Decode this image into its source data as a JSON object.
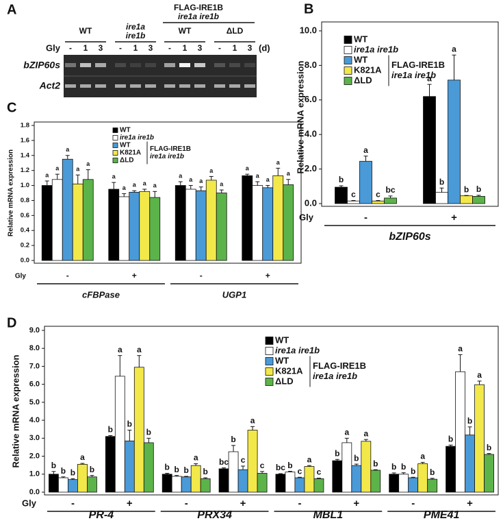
{
  "gel": {
    "panel_label": "A",
    "header_top": "FLAG-IRE1B",
    "header_top_sub": "ire1a ire1b",
    "groups": [
      [
        "WT"
      ],
      [
        "ire1a",
        "ire1b"
      ],
      [
        "WT"
      ],
      [
        "ΔLD"
      ]
    ],
    "row_label": "Gly",
    "lanes": [
      "-",
      "1",
      "3",
      "-",
      "1",
      "3",
      "-",
      "1",
      "3",
      "-",
      "1",
      "3"
    ],
    "unit": "(d)",
    "bands": [
      "bZIP60s",
      "Act2"
    ]
  },
  "chart_data": [
    {
      "type": "bar",
      "panel_label": "B",
      "ylabel": "Relative mRNA expression",
      "x_title": "Gly",
      "categories": [
        "-",
        "+"
      ],
      "genes": [
        "bZIP60s"
      ],
      "ylim": [
        0,
        10
      ],
      "yticks": [
        {
          "value": 0,
          "label": "0.0"
        },
        {
          "value": 2,
          "label": "2.0"
        },
        {
          "value": 4,
          "label": "4.0"
        },
        {
          "value": 6,
          "label": "6.0"
        },
        {
          "value": 8,
          "label": "8.0"
        },
        {
          "value": 10,
          "label": "10.0"
        }
      ],
      "legend_group_label": [
        "FLAG-IRE1B",
        "ire1a ire1b"
      ],
      "series": [
        {
          "name": "WT",
          "color": "#000000",
          "values": [
            0.95,
            6.2
          ],
          "errors": [
            0.08,
            0.7
          ],
          "letters": [
            "b",
            "a"
          ]
        },
        {
          "name": "ire1a ire1b",
          "color": "#ffffff",
          "values": [
            0.15,
            0.65
          ],
          "errors": [
            0.03,
            0.25
          ],
          "letters": [
            "c",
            "b"
          ]
        },
        {
          "name": "WT",
          "color": "#4a9ad8",
          "values": [
            2.45,
            7.15
          ],
          "errors": [
            0.3,
            1.45
          ],
          "letters": [
            "a",
            "a"
          ]
        },
        {
          "name": "K821A",
          "color": "#f2e84a",
          "values": [
            0.15,
            0.45
          ],
          "errors": [
            0.03,
            0.02
          ],
          "letters": [
            "c",
            "b"
          ]
        },
        {
          "name": "ΔLD",
          "color": "#5cb34a",
          "values": [
            0.32,
            0.42
          ],
          "errors": [
            0.12,
            0.06
          ],
          "letters": [
            "bc",
            "b"
          ]
        }
      ]
    },
    {
      "type": "bar",
      "panel_label": "C",
      "ylabel": "Relative mRNA expression",
      "x_title": "Gly",
      "categories": [
        "-",
        "+",
        "-",
        "+"
      ],
      "genes": [
        "cFBPase",
        "UGP1"
      ],
      "ylim": [
        0,
        1.8
      ],
      "yticks": [
        {
          "value": 0,
          "label": "0.0"
        },
        0.2,
        0.4,
        0.6,
        0.8,
        {
          "value": 1,
          "label": "1.0"
        },
        1.2,
        1.4,
        1.6,
        1.8
      ],
      "legend_group_label": [
        "FLAG-IRE1B",
        "ire1a ire1b"
      ],
      "series": [
        {
          "name": "WT",
          "color": "#000000",
          "values": [
            1.0,
            0.95,
            1.0,
            1.13
          ],
          "errors": [
            0.06,
            0.09,
            0.05,
            0.02
          ],
          "letters": [
            "a",
            "a",
            "a",
            "a"
          ]
        },
        {
          "name": "ire1a ire1b",
          "color": "#ffffff",
          "values": [
            1.08,
            0.85,
            0.95,
            1.0
          ],
          "errors": [
            0.07,
            0.04,
            0.05,
            0.05
          ],
          "letters": [
            "a",
            "a",
            "a",
            "a"
          ]
        },
        {
          "name": "WT",
          "color": "#4a9ad8",
          "values": [
            1.35,
            0.91,
            0.93,
            0.97
          ],
          "errors": [
            0.05,
            0.02,
            0.05,
            0.03
          ],
          "letters": [
            "a",
            "a",
            "a",
            "a"
          ]
        },
        {
          "name": "K821A",
          "color": "#f2e84a",
          "values": [
            1.02,
            0.92,
            1.07,
            1.13
          ],
          "errors": [
            0.12,
            0.03,
            0.05,
            0.1
          ],
          "letters": [
            "a",
            "a",
            "a",
            "a"
          ]
        },
        {
          "name": "ΔLD",
          "color": "#5cb34a",
          "values": [
            1.08,
            0.84,
            0.9,
            1.01
          ],
          "errors": [
            0.13,
            0.08,
            0.04,
            0.07
          ],
          "letters": [
            "a",
            "a",
            "a",
            "a"
          ]
        }
      ]
    },
    {
      "type": "bar",
      "panel_label": "D",
      "ylabel": "Relative mRNA expression",
      "x_title": "Gly",
      "categories": [
        "-",
        "+",
        "-",
        "+",
        "-",
        "+",
        "-",
        "+"
      ],
      "genes": [
        "PR-4",
        "PRX34",
        "MBL1",
        "PME41"
      ],
      "ylim": [
        0,
        9
      ],
      "yticks": [
        {
          "value": 0,
          "label": "0.0"
        },
        {
          "value": 1,
          "label": "1.0"
        },
        {
          "value": 2,
          "label": "2.0"
        },
        {
          "value": 3,
          "label": "3.0"
        },
        {
          "value": 4,
          "label": "4.0"
        },
        {
          "value": 5,
          "label": "5.0"
        },
        {
          "value": 6,
          "label": "6.0"
        },
        {
          "value": 7,
          "label": "7.0"
        },
        {
          "value": 8,
          "label": "8.0"
        },
        {
          "value": 9,
          "label": "9.0"
        }
      ],
      "legend_group_label": [
        "FLAG-IRE1B",
        "ire1a ire1b"
      ],
      "series": [
        {
          "name": "WT",
          "color": "#000000",
          "values": [
            1.0,
            3.1,
            1.0,
            1.3,
            1.0,
            1.75,
            1.0,
            2.55
          ],
          "errors": [
            0.15,
            0.05,
            0.05,
            0.05,
            0.03,
            0.07,
            0.07,
            0.07
          ],
          "letters": [
            "b",
            "b",
            "b",
            "bc",
            "bc",
            "b",
            "b",
            "b"
          ]
        },
        {
          "name": "ire1a ire1b",
          "color": "#ffffff",
          "values": [
            0.8,
            6.45,
            0.88,
            2.25,
            1.12,
            2.75,
            1.0,
            6.7
          ],
          "errors": [
            0.05,
            1.15,
            0.05,
            0.35,
            0.04,
            0.25,
            0.08,
            0.95
          ],
          "letters": [
            "b",
            "a",
            "b",
            "b",
            "b",
            "a",
            "b",
            "a"
          ]
        },
        {
          "name": "WT",
          "color": "#4a9ad8",
          "values": [
            0.7,
            2.85,
            0.85,
            1.25,
            0.8,
            1.48,
            0.8,
            3.18
          ],
          "errors": [
            0.05,
            0.6,
            0.03,
            0.2,
            0.03,
            0.08,
            0.03,
            0.45
          ],
          "letters": [
            "b",
            "b",
            "b",
            "c",
            "c",
            "b",
            "b",
            "b"
          ]
        },
        {
          "name": "K821A",
          "color": "#f2e84a",
          "values": [
            1.55,
            6.95,
            1.48,
            3.45,
            1.43,
            2.83,
            1.58,
            5.98
          ],
          "errors": [
            0.05,
            0.65,
            0.1,
            0.2,
            0.05,
            0.1,
            0.08,
            0.2
          ],
          "letters": [
            "a",
            "a",
            "a",
            "a",
            "a",
            "a",
            "a",
            "a"
          ]
        },
        {
          "name": "ΔLD",
          "color": "#5cb34a",
          "values": [
            0.85,
            2.75,
            0.75,
            1.05,
            0.75,
            1.22,
            0.72,
            2.1
          ],
          "errors": [
            0.08,
            0.25,
            0.05,
            0.1,
            0.03,
            0.03,
            0.05,
            0.05
          ],
          "letters": [
            "b",
            "b",
            "b",
            "c",
            "c",
            "b",
            "b",
            "b"
          ]
        }
      ]
    }
  ]
}
